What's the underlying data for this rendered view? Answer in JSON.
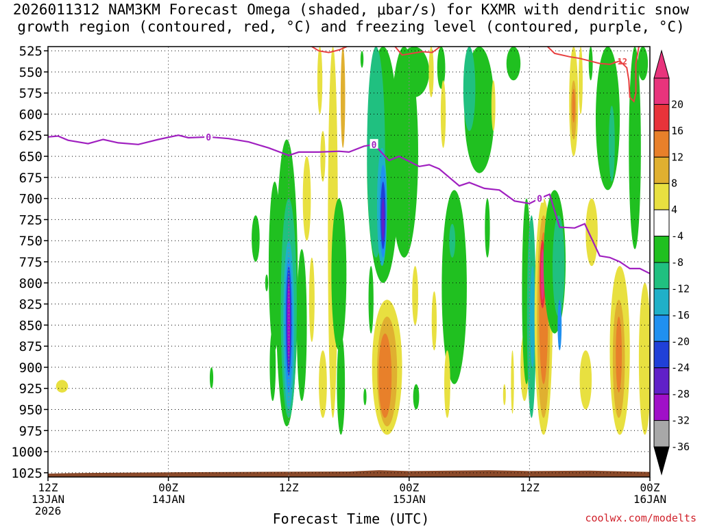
{
  "chart_data": {
    "type": "heatmap",
    "title_line1": "2026011312 NAM3KM Forecast Omega (shaded, μbar/s) for KXMR with dendritic snow",
    "title_line2": "growth region (contoured, red, °C) and freezing level (contoured, purple, °C)",
    "xlabel": "Forecast Time (UTC)",
    "credit": "coolwx.com/modelts",
    "y_axis": {
      "unit": "hPa",
      "range": [
        1030,
        520
      ],
      "ticks": [
        525,
        550,
        575,
        600,
        625,
        650,
        675,
        700,
        725,
        750,
        775,
        800,
        825,
        850,
        875,
        900,
        925,
        950,
        975,
        1000,
        1025
      ]
    },
    "x_axis": {
      "unit": "forecast hours",
      "range": [
        0,
        60
      ],
      "ticks": [
        {
          "hour": 0,
          "labels": [
            "12Z",
            "13JAN",
            "2026"
          ]
        },
        {
          "hour": 12,
          "labels": [
            "00Z",
            "14JAN"
          ]
        },
        {
          "hour": 24,
          "labels": [
            "12Z"
          ]
        },
        {
          "hour": 36,
          "labels": [
            "00Z",
            "15JAN"
          ]
        },
        {
          "hour": 48,
          "labels": [
            "12Z"
          ]
        },
        {
          "hour": 60,
          "labels": [
            "00Z",
            "16JAN"
          ]
        }
      ]
    },
    "colorbar": {
      "labels": [
        "20",
        "16",
        "12",
        "8",
        "4",
        "-4",
        "-8",
        "-12",
        "-16",
        "-20",
        "-24",
        "-28",
        "-32",
        "-36"
      ],
      "bands": [
        {
          "lo": 20,
          "hi": 24,
          "color": "#e8347c"
        },
        {
          "lo": 16,
          "hi": 20,
          "color": "#e8333a"
        },
        {
          "lo": 12,
          "hi": 16,
          "color": "#e8802a"
        },
        {
          "lo": 8,
          "hi": 12,
          "color": "#e0b030"
        },
        {
          "lo": 4,
          "hi": 8,
          "color": "#e8e040"
        },
        {
          "lo": -4,
          "hi": 4,
          "color": "#ffffff"
        },
        {
          "lo": -8,
          "hi": -4,
          "color": "#20c020"
        },
        {
          "lo": -12,
          "hi": -8,
          "color": "#20c080"
        },
        {
          "lo": -16,
          "hi": -12,
          "color": "#20b0c8"
        },
        {
          "lo": -20,
          "hi": -16,
          "color": "#2090f0"
        },
        {
          "lo": -24,
          "hi": -20,
          "color": "#2040d8"
        },
        {
          "lo": -28,
          "hi": -24,
          "color": "#6020c8"
        },
        {
          "lo": -32,
          "hi": -28,
          "color": "#a010c8"
        },
        {
          "lo": -36,
          "hi": -32,
          "color": "#a8a8a8"
        }
      ],
      "top_color": "#e8347c",
      "bottom_color": "#000000"
    },
    "terrain": {
      "color": "#8b4a2a",
      "surface_pressure": [
        {
          "h": 0,
          "p": 1026
        },
        {
          "h": 2,
          "p": 1025.5
        },
        {
          "h": 6,
          "p": 1025
        },
        {
          "h": 12,
          "p": 1024.5
        },
        {
          "h": 20,
          "p": 1024
        },
        {
          "h": 30,
          "p": 1023.5
        },
        {
          "h": 33,
          "p": 1022
        },
        {
          "h": 36,
          "p": 1023
        },
        {
          "h": 44,
          "p": 1022
        },
        {
          "h": 48,
          "p": 1023
        },
        {
          "h": 54,
          "p": 1022.5
        },
        {
          "h": 60,
          "p": 1024
        }
      ]
    },
    "freezing_level": {
      "color": "#a020c0",
      "label": "0",
      "points": [
        {
          "h": 0,
          "p": 627
        },
        {
          "h": 1,
          "p": 626
        },
        {
          "h": 2,
          "p": 631
        },
        {
          "h": 4,
          "p": 635
        },
        {
          "h": 5.5,
          "p": 630
        },
        {
          "h": 7,
          "p": 634
        },
        {
          "h": 9,
          "p": 636
        },
        {
          "h": 11,
          "p": 630
        },
        {
          "h": 13,
          "p": 625
        },
        {
          "h": 14,
          "p": 628
        },
        {
          "h": 16,
          "p": 627
        },
        {
          "h": 18,
          "p": 629
        },
        {
          "h": 20,
          "p": 633
        },
        {
          "h": 22,
          "p": 640
        },
        {
          "h": 24,
          "p": 649
        },
        {
          "h": 25,
          "p": 645
        },
        {
          "h": 27,
          "p": 645
        },
        {
          "h": 29,
          "p": 644
        },
        {
          "h": 30,
          "p": 645
        },
        {
          "h": 31.5,
          "p": 638
        },
        {
          "h": 32.5,
          "p": 636
        },
        {
          "h": 34,
          "p": 655
        },
        {
          "h": 35,
          "p": 650
        },
        {
          "h": 37,
          "p": 662
        },
        {
          "h": 38,
          "p": 660
        },
        {
          "h": 39,
          "p": 665
        },
        {
          "h": 41,
          "p": 685
        },
        {
          "h": 42,
          "p": 681
        },
        {
          "h": 43.5,
          "p": 688
        },
        {
          "h": 45,
          "p": 690
        },
        {
          "h": 46.5,
          "p": 703
        },
        {
          "h": 48,
          "p": 706
        },
        {
          "h": 49,
          "p": 700
        },
        {
          "h": 50,
          "p": 695
        },
        {
          "h": 51,
          "p": 734
        },
        {
          "h": 52.5,
          "p": 735
        },
        {
          "h": 53.5,
          "p": 730
        },
        {
          "h": 55,
          "p": 768
        },
        {
          "h": 56,
          "p": 770
        },
        {
          "h": 57,
          "p": 775
        },
        {
          "h": 58,
          "p": 783
        },
        {
          "h": 59,
          "p": 783
        },
        {
          "h": 60,
          "p": 789
        }
      ],
      "label_hours": [
        16,
        32.5,
        49
      ]
    },
    "dgz_contour": {
      "color": "#e84040",
      "label": "-12",
      "segments": [
        [
          {
            "h": 26.3,
            "p": 520
          },
          {
            "h": 27,
            "p": 525
          },
          {
            "h": 28,
            "p": 527
          },
          {
            "h": 29,
            "p": 524
          },
          {
            "h": 29.8,
            "p": 520
          }
        ],
        [
          {
            "h": 34.6,
            "p": 520
          },
          {
            "h": 35.3,
            "p": 530
          },
          {
            "h": 36.3,
            "p": 528
          },
          {
            "h": 37.3,
            "p": 526
          },
          {
            "h": 38.3,
            "p": 527
          },
          {
            "h": 39.1,
            "p": 520
          }
        ],
        [
          {
            "h": 49.8,
            "p": 520
          },
          {
            "h": 50.5,
            "p": 528
          },
          {
            "h": 52,
            "p": 532
          },
          {
            "h": 53,
            "p": 534
          },
          {
            "h": 55,
            "p": 540
          },
          {
            "h": 56,
            "p": 541
          },
          {
            "h": 57,
            "p": 537
          },
          {
            "h": 57.7,
            "p": 545
          },
          {
            "h": 57.9,
            "p": 560
          },
          {
            "h": 58,
            "p": 580
          },
          {
            "h": 58.4,
            "p": 585
          },
          {
            "h": 58.6,
            "p": 575
          },
          {
            "h": 58.6,
            "p": 540
          },
          {
            "h": 58.9,
            "p": 520
          }
        ]
      ],
      "label_hour": 57
    },
    "omega_features": [
      {
        "h": 1.4,
        "p1": 915,
        "p2": 930,
        "w": 1.2,
        "val": 5
      },
      {
        "h": 16.3,
        "p1": 900,
        "p2": 925,
        "w": 0.35,
        "val": -6
      },
      {
        "h": 20.7,
        "p1": 720,
        "p2": 775,
        "w": 0.8,
        "val": -6
      },
      {
        "h": 21.8,
        "p1": 790,
        "p2": 810,
        "w": 0.3,
        "val": -6
      },
      {
        "h": 22.4,
        "p1": 855,
        "p2": 940,
        "w": 0.6,
        "val": -6
      },
      {
        "h": 22.6,
        "p1": 680,
        "p2": 880,
        "w": 1.2,
        "val": -6
      },
      {
        "h": 23.8,
        "p1": 630,
        "p2": 970,
        "w": 2.2,
        "val": -7
      },
      {
        "h": 24,
        "p1": 700,
        "p2": 960,
        "w": 1.6,
        "val": -10
      },
      {
        "h": 24,
        "p1": 750,
        "p2": 950,
        "w": 1.1,
        "val": -14
      },
      {
        "h": 24,
        "p1": 770,
        "p2": 930,
        "w": 0.8,
        "val": -18
      },
      {
        "h": 24,
        "p1": 780,
        "p2": 910,
        "w": 0.55,
        "val": -22
      },
      {
        "h": 24,
        "p1": 790,
        "p2": 900,
        "w": 0.35,
        "val": -26
      },
      {
        "h": 24,
        "p1": 800,
        "p2": 890,
        "w": 0.18,
        "val": -30
      },
      {
        "h": 25.3,
        "p1": 760,
        "p2": 940,
        "w": 1.0,
        "val": -6
      },
      {
        "h": 26.3,
        "p1": 770,
        "p2": 870,
        "w": 0.55,
        "val": 5
      },
      {
        "h": 27.4,
        "p1": 880,
        "p2": 960,
        "w": 0.8,
        "val": 5
      },
      {
        "h": 25.8,
        "p1": 650,
        "p2": 750,
        "w": 0.8,
        "val": 5
      },
      {
        "h": 27.1,
        "p1": 520,
        "p2": 600,
        "w": 0.5,
        "val": 5
      },
      {
        "h": 27.4,
        "p1": 620,
        "p2": 680,
        "w": 0.5,
        "val": 5
      },
      {
        "h": 28.4,
        "p1": 520,
        "p2": 960,
        "w": 1.0,
        "val": 5
      },
      {
        "h": 29.4,
        "p1": 520,
        "p2": 640,
        "w": 0.45,
        "val": 10
      },
      {
        "h": 29,
        "p1": 700,
        "p2": 880,
        "w": 1.5,
        "val": -6
      },
      {
        "h": 29.2,
        "p1": 860,
        "p2": 980,
        "w": 0.8,
        "val": -6
      },
      {
        "h": 31.3,
        "p1": 525,
        "p2": 545,
        "w": 0.3,
        "val": -6
      },
      {
        "h": 31.6,
        "p1": 925,
        "p2": 945,
        "w": 0.3,
        "val": -6
      },
      {
        "h": 32.2,
        "p1": 780,
        "p2": 860,
        "w": 0.5,
        "val": -6
      },
      {
        "h": 33.4,
        "p1": 520,
        "p2": 800,
        "w": 3.2,
        "val": -7
      },
      {
        "h": 32.7,
        "p1": 520,
        "p2": 770,
        "w": 1.8,
        "val": -10
      },
      {
        "h": 33.3,
        "p1": 640,
        "p2": 780,
        "w": 1.0,
        "val": -14
      },
      {
        "h": 33.4,
        "p1": 660,
        "p2": 770,
        "w": 0.7,
        "val": -18
      },
      {
        "h": 33.4,
        "p1": 680,
        "p2": 760,
        "w": 0.5,
        "val": -22
      },
      {
        "h": 33.4,
        "p1": 700,
        "p2": 750,
        "w": 0.3,
        "val": -28
      },
      {
        "h": 35.5,
        "p1": 520,
        "p2": 770,
        "w": 2.8,
        "val": -7
      },
      {
        "h": 36.5,
        "p1": 520,
        "p2": 580,
        "w": 3.0,
        "val": -7
      },
      {
        "h": 33.8,
        "p1": 820,
        "p2": 980,
        "w": 3.0,
        "val": 5
      },
      {
        "h": 33.8,
        "p1": 840,
        "p2": 970,
        "w": 2.0,
        "val": 10
      },
      {
        "h": 33.6,
        "p1": 860,
        "p2": 960,
        "w": 1.3,
        "val": 14
      },
      {
        "h": 36.6,
        "p1": 780,
        "p2": 850,
        "w": 0.6,
        "val": 5
      },
      {
        "h": 36.7,
        "p1": 920,
        "p2": 950,
        "w": 0.6,
        "val": -6
      },
      {
        "h": 38.2,
        "p1": 520,
        "p2": 580,
        "w": 0.5,
        "val": 5
      },
      {
        "h": 39.2,
        "p1": 520,
        "p2": 570,
        "w": 0.8,
        "val": -6
      },
      {
        "h": 39.4,
        "p1": 560,
        "p2": 640,
        "w": 0.5,
        "val": 5
      },
      {
        "h": 38.5,
        "p1": 810,
        "p2": 880,
        "w": 0.5,
        "val": 5
      },
      {
        "h": 40.5,
        "p1": 690,
        "p2": 920,
        "w": 2.5,
        "val": -7
      },
      {
        "h": 40.3,
        "p1": 730,
        "p2": 770,
        "w": 0.6,
        "val": -10
      },
      {
        "h": 39.8,
        "p1": 880,
        "p2": 960,
        "w": 0.6,
        "val": 5
      },
      {
        "h": 43,
        "p1": 520,
        "p2": 670,
        "w": 3.0,
        "val": -7
      },
      {
        "h": 42,
        "p1": 520,
        "p2": 620,
        "w": 1.2,
        "val": -10
      },
      {
        "h": 43.8,
        "p1": 700,
        "p2": 770,
        "w": 0.5,
        "val": -6
      },
      {
        "h": 44.4,
        "p1": 560,
        "p2": 620,
        "w": 0.4,
        "val": 5
      },
      {
        "h": 46.4,
        "p1": 520,
        "p2": 560,
        "w": 1.4,
        "val": -7
      },
      {
        "h": 45.5,
        "p1": 920,
        "p2": 945,
        "w": 0.25,
        "val": 5
      },
      {
        "h": 46.3,
        "p1": 880,
        "p2": 955,
        "w": 0.3,
        "val": 5
      },
      {
        "h": 47.5,
        "p1": 860,
        "p2": 940,
        "w": 0.8,
        "val": 5
      },
      {
        "h": 47.7,
        "p1": 700,
        "p2": 920,
        "w": 0.9,
        "val": -7
      },
      {
        "h": 48.2,
        "p1": 720,
        "p2": 960,
        "w": 0.9,
        "val": -10
      },
      {
        "h": 48.3,
        "p1": 780,
        "p2": 900,
        "w": 0.5,
        "val": -14
      },
      {
        "h": 49.4,
        "p1": 700,
        "p2": 980,
        "w": 1.8,
        "val": 5
      },
      {
        "h": 49.4,
        "p1": 720,
        "p2": 960,
        "w": 1.3,
        "val": 8
      },
      {
        "h": 49.4,
        "p1": 740,
        "p2": 920,
        "w": 0.9,
        "val": 12
      },
      {
        "h": 49.3,
        "p1": 750,
        "p2": 830,
        "w": 0.6,
        "val": 16
      },
      {
        "h": 49.3,
        "p1": 760,
        "p2": 820,
        "w": 0.35,
        "val": 22
      },
      {
        "h": 50.5,
        "p1": 690,
        "p2": 860,
        "w": 2.2,
        "val": -7
      },
      {
        "h": 50.9,
        "p1": 720,
        "p2": 840,
        "w": 1.2,
        "val": -10
      },
      {
        "h": 51,
        "p1": 820,
        "p2": 880,
        "w": 0.4,
        "val": -18
      },
      {
        "h": 52.4,
        "p1": 520,
        "p2": 650,
        "w": 0.9,
        "val": 5
      },
      {
        "h": 52.4,
        "p1": 560,
        "p2": 630,
        "w": 0.55,
        "val": 10
      },
      {
        "h": 52.4,
        "p1": 570,
        "p2": 610,
        "w": 0.3,
        "val": 14
      },
      {
        "h": 53.1,
        "p1": 520,
        "p2": 600,
        "w": 0.4,
        "val": 5
      },
      {
        "h": 54.1,
        "p1": 520,
        "p2": 560,
        "w": 0.4,
        "val": -6
      },
      {
        "h": 54.2,
        "p1": 700,
        "p2": 780,
        "w": 1.2,
        "val": 5
      },
      {
        "h": 53.6,
        "p1": 880,
        "p2": 950,
        "w": 1.2,
        "val": 5
      },
      {
        "h": 55.8,
        "p1": 520,
        "p2": 690,
        "w": 2.4,
        "val": -7
      },
      {
        "h": 56.2,
        "p1": 590,
        "p2": 680,
        "w": 0.6,
        "val": -10
      },
      {
        "h": 57,
        "p1": 780,
        "p2": 980,
        "w": 2.0,
        "val": 5
      },
      {
        "h": 56.9,
        "p1": 820,
        "p2": 960,
        "w": 1.2,
        "val": 10
      },
      {
        "h": 56.9,
        "p1": 840,
        "p2": 930,
        "w": 0.6,
        "val": 14
      },
      {
        "h": 58.5,
        "p1": 520,
        "p2": 760,
        "w": 1.2,
        "val": -7
      },
      {
        "h": 59.5,
        "p1": 800,
        "p2": 980,
        "w": 1.2,
        "val": 5
      },
      {
        "h": 59.3,
        "p1": 520,
        "p2": 560,
        "w": 1.0,
        "val": -7
      }
    ]
  }
}
